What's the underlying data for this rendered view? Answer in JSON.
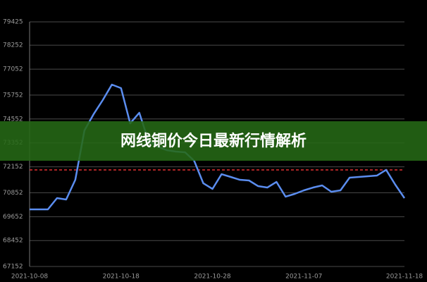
{
  "banner_title": "网线铜价今日最新行情解析",
  "chart_data": {
    "type": "line",
    "categories": [
      "2021-10-08",
      null,
      null,
      null,
      null,
      null,
      null,
      null,
      null,
      null,
      "2021-10-18",
      null,
      null,
      null,
      null,
      null,
      null,
      null,
      null,
      null,
      "2021-10-28",
      null,
      null,
      null,
      null,
      null,
      null,
      null,
      null,
      null,
      "2021-11-07",
      null,
      null,
      null,
      null,
      null,
      null,
      null,
      null,
      null,
      null,
      "2021-11-18"
    ],
    "series": [
      {
        "color": "#5b8def",
        "values": [
          70017,
          70017,
          70017,
          70583,
          70512,
          71502,
          73978,
          74792,
          75499,
          76277,
          76101,
          74332,
          74863,
          73448,
          73165,
          72988,
          72917,
          72882,
          72458,
          71326,
          71043,
          71785,
          71644,
          71502,
          71467,
          71184,
          71113,
          71396,
          70654,
          70795,
          70972,
          71113,
          71220,
          70901,
          70972,
          71609,
          71644,
          71679,
          71715,
          71998,
          71255,
          70583
        ]
      }
    ],
    "ref_line": {
      "value": 71998,
      "color": "#e03030"
    },
    "ylim": [
      67152,
      79425
    ],
    "yticks": [
      67152,
      68452,
      69652,
      70852,
      72152,
      73352,
      74552,
      75752,
      77052,
      78252,
      79425
    ],
    "grid": true
  }
}
